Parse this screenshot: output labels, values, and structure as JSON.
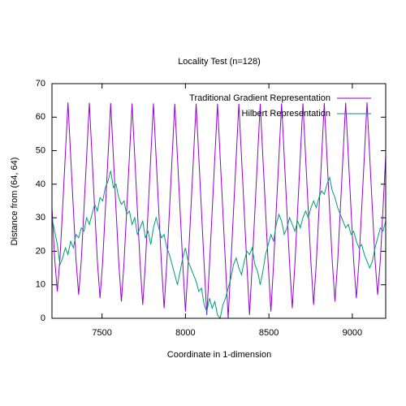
{
  "chart_data": {
    "type": "line",
    "title": "Locality Test (n=128)",
    "x_label": "Coordinate in 1-dimension",
    "y_label": "Distance from (64, 64)",
    "xlim": [
      7200,
      9200
    ],
    "xticks": [
      7500,
      8000,
      8500,
      9000
    ],
    "ylim": [
      0,
      70
    ],
    "yticks": [
      0,
      10,
      20,
      30,
      40,
      50,
      60,
      70
    ],
    "legend": "top right",
    "x": [
      7200,
      7216,
      7232,
      7248,
      7264,
      7280,
      7296,
      7312,
      7328,
      7344,
      7360,
      7376,
      7392,
      7408,
      7424,
      7440,
      7456,
      7472,
      7488,
      7504,
      7520,
      7536,
      7552,
      7568,
      7584,
      7600,
      7616,
      7632,
      7648,
      7664,
      7680,
      7696,
      7712,
      7728,
      7744,
      7760,
      7776,
      7792,
      7808,
      7824,
      7840,
      7856,
      7872,
      7888,
      7904,
      7920,
      7936,
      7952,
      7968,
      7984,
      8000,
      8016,
      8032,
      8048,
      8064,
      8080,
      8096,
      8112,
      8128,
      8144,
      8160,
      8176,
      8192,
      8208,
      8224,
      8240,
      8256,
      8272,
      8288,
      8304,
      8320,
      8336,
      8352,
      8368,
      8384,
      8400,
      8416,
      8432,
      8448,
      8464,
      8480,
      8496,
      8512,
      8528,
      8544,
      8560,
      8576,
      8592,
      8608,
      8624,
      8640,
      8656,
      8672,
      8688,
      8704,
      8720,
      8736,
      8752,
      8768,
      8784,
      8800,
      8816,
      8832,
      8848,
      8864,
      8880,
      8896,
      8912,
      8928,
      8944,
      8960,
      8976,
      8992,
      9008,
      9024,
      9040,
      9056,
      9072,
      9088,
      9104,
      9120,
      9136,
      9152,
      9168,
      9184,
      9200
    ],
    "series": [
      {
        "name": "Traditional Gradient Representation",
        "color": "#9400d3",
        "values": [
          33.0,
          17.9,
          8,
          17.9,
          33.0,
          48.7,
          64.4,
          48.5,
          32.8,
          17.5,
          7,
          17.5,
          32.8,
          48.5,
          64.3,
          48.4,
          32.6,
          17.1,
          6,
          17.1,
          32.6,
          48.4,
          64.2,
          48.3,
          32.4,
          16.8,
          5,
          16.8,
          32.4,
          48.3,
          64.1,
          48.2,
          32.2,
          16.5,
          4,
          16.5,
          32.2,
          48.2,
          64.1,
          48.1,
          32.1,
          16.3,
          3,
          16.3,
          32.1,
          48.1,
          64.0,
          48.0,
          32.1,
          16.1,
          2,
          16.1,
          32.1,
          48.0,
          64.0,
          48.0,
          32.0,
          16.0,
          1,
          16.0,
          32.0,
          48.0,
          64,
          48,
          32,
          16,
          0,
          16,
          32,
          48,
          64.0,
          48.0,
          32.0,
          16.0,
          1,
          16.0,
          32.0,
          48.0,
          64.0,
          48.0,
          32.1,
          16.1,
          2,
          16.1,
          32.1,
          48.0,
          64.1,
          48.1,
          32.1,
          16.3,
          3,
          16.3,
          32.1,
          48.1,
          64.1,
          48.2,
          32.2,
          16.5,
          4,
          16.5,
          32.2,
          48.2,
          64.2,
          48.3,
          32.4,
          16.8,
          5,
          16.8,
          32.4,
          48.3,
          64.3,
          48.4,
          32.6,
          17.1,
          6,
          17.1,
          32.6,
          48.4,
          64.4,
          48.5,
          32.8,
          17.5,
          7,
          17.5,
          32.8,
          48.5
        ]
      },
      {
        "name": "Hilbert Representation",
        "color": "#009e73",
        "values": [
          30,
          26,
          22,
          16,
          18,
          21,
          19,
          23,
          21,
          25,
          24,
          27,
          26,
          30,
          28,
          31,
          34,
          32,
          36,
          35,
          39,
          41,
          44,
          39,
          40,
          36,
          34,
          35,
          31,
          32,
          28,
          30,
          25,
          27,
          29,
          24,
          26,
          22,
          27,
          30,
          27,
          24,
          25,
          21,
          19,
          16,
          13,
          10,
          14,
          18,
          21,
          17,
          15,
          13,
          11,
          8,
          9,
          4,
          2,
          6,
          3,
          5,
          1,
          0,
          4,
          6,
          9,
          12,
          16,
          18,
          15,
          13,
          17,
          20,
          19,
          21,
          16,
          14,
          10,
          14,
          19,
          22,
          25,
          23,
          28,
          31,
          29,
          25,
          27,
          30,
          28,
          26,
          29,
          27,
          30,
          32,
          30,
          33,
          35,
          33,
          36,
          38,
          37,
          40,
          42,
          38,
          36,
          33,
          31,
          29,
          27,
          28,
          25,
          26,
          23,
          21,
          22,
          19,
          17,
          15,
          17,
          21,
          24,
          27,
          26,
          29
        ]
      }
    ]
  }
}
